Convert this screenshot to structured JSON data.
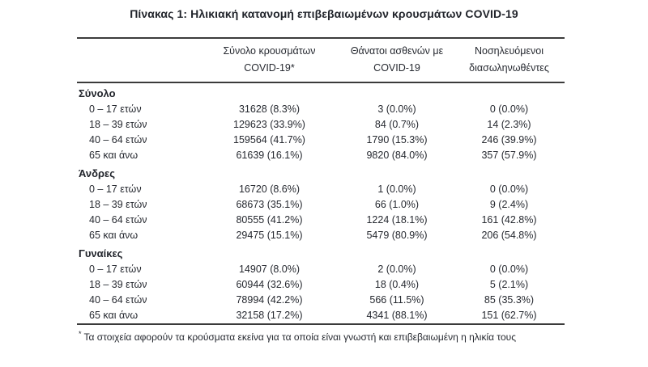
{
  "title": "Πίνακας 1: Ηλικιακή κατανομή επιβεβαιωμένων κρουσμάτων COVID-19",
  "colors": {
    "text": "#262930",
    "border": "#3b3b3b",
    "background": "#ffffff"
  },
  "table": {
    "columns": [
      {
        "line1": "Σύνολο κρουσμάτων",
        "line2": "COVID-19*"
      },
      {
        "line1": "Θάνατοι ασθενών με",
        "line2": "COVID-19"
      },
      {
        "line1": "Νοσηλευόμενοι",
        "line2": "διασωληνωθέντες"
      }
    ],
    "sections": [
      {
        "name": "Σύνολο",
        "rows": [
          {
            "label": "0 – 17 ετών",
            "values": [
              "31628 (8.3%)",
              "3 (0.0%)",
              "0 (0.0%)"
            ]
          },
          {
            "label": "18 – 39 ετών",
            "values": [
              "129623 (33.9%)",
              "84 (0.7%)",
              "14 (2.3%)"
            ]
          },
          {
            "label": "40 – 64 ετών",
            "values": [
              "159564 (41.7%)",
              "1790 (15.3%)",
              "246 (39.9%)"
            ]
          },
          {
            "label": "65 και άνω",
            "values": [
              "61639 (16.1%)",
              "9820 (84.0%)",
              "357 (57.9%)"
            ]
          }
        ]
      },
      {
        "name": "Άνδρες",
        "rows": [
          {
            "label": "0 – 17 ετών",
            "values": [
              "16720 (8.6%)",
              "1 (0.0%)",
              "0 (0.0%)"
            ]
          },
          {
            "label": "18 – 39 ετών",
            "values": [
              "68673 (35.1%)",
              "66 (1.0%)",
              "9 (2.4%)"
            ]
          },
          {
            "label": "40 – 64 ετών",
            "values": [
              "80555 (41.2%)",
              "1224 (18.1%)",
              "161 (42.8%)"
            ]
          },
          {
            "label": "65 και άνω",
            "values": [
              "29475 (15.1%)",
              "5479 (80.9%)",
              "206 (54.8%)"
            ]
          }
        ]
      },
      {
        "name": "Γυναίκες",
        "rows": [
          {
            "label": "0 – 17 ετών",
            "values": [
              "14907 (8.0%)",
              "2 (0.0%)",
              "0 (0.0%)"
            ]
          },
          {
            "label": "18 – 39 ετών",
            "values": [
              "60944 (32.6%)",
              "18 (0.4%)",
              "5 (2.1%)"
            ]
          },
          {
            "label": "40 – 64 ετών",
            "values": [
              "78994 (42.2%)",
              "566 (11.5%)",
              "85 (35.3%)"
            ]
          },
          {
            "label": "65 και άνω",
            "values": [
              "32158 (17.2%)",
              "4341 (88.1%)",
              "151 (62.7%)"
            ]
          }
        ]
      }
    ]
  },
  "footnote": {
    "marker": "*",
    "text": "Τα στοιχεία αφορούν τα κρούσματα εκείνα για τα οποία είναι γνωστή και επιβεβαιωμένη η ηλικία τους"
  }
}
